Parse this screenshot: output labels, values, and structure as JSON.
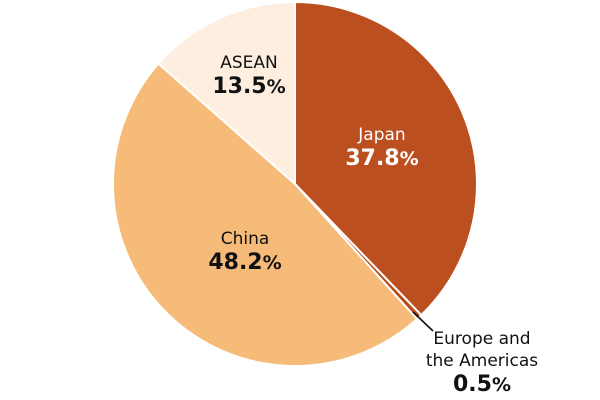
{
  "chart_data": {
    "type": "pie",
    "title": "",
    "start_angle": "12 o'clock",
    "direction": "clockwise",
    "slices": [
      {
        "label": "Japan",
        "value": 37.8,
        "display": "37.8",
        "unit": "%",
        "color": "#BB4F1F"
      },
      {
        "label": "Europe and the Americas",
        "value": 0.5,
        "display": "0.5",
        "unit": "%",
        "color": "#B84A1C"
      },
      {
        "label": "China",
        "value": 48.2,
        "display": "48.2",
        "unit": "%",
        "color": "#F6BB79"
      },
      {
        "label": "ASEAN",
        "value": 13.5,
        "display": "13.5",
        "unit": "%",
        "color": "#FDEEDF"
      }
    ]
  },
  "labels": {
    "japan": {
      "name": "Japan",
      "pct": "37.8",
      "unit": "%"
    },
    "europe": {
      "name_line1": "Europe and",
      "name_line2": "the Americas",
      "pct": "0.5",
      "unit": "%"
    },
    "china": {
      "name": "China",
      "pct": "48.2",
      "unit": "%"
    },
    "asean": {
      "name": "ASEAN",
      "pct": "13.5",
      "unit": "%"
    }
  }
}
